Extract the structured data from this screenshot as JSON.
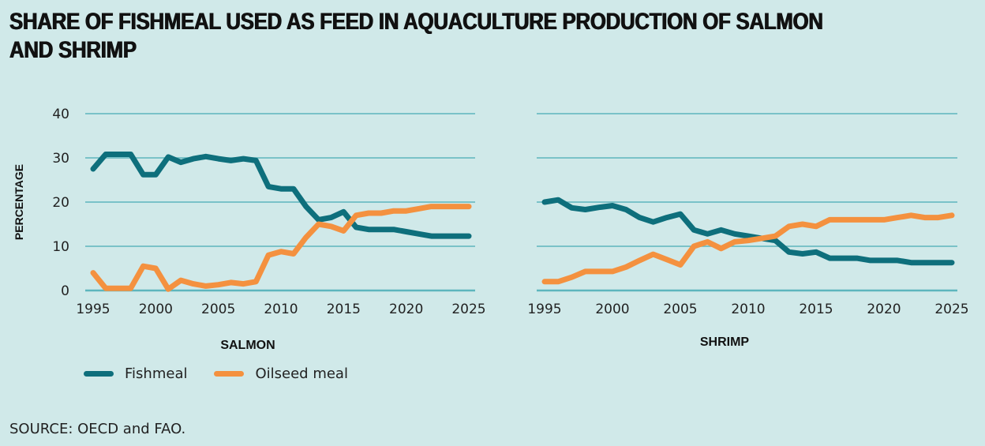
{
  "title": "SHARE OF FISHMEAL USED AS FEED IN AQUACULTURE PRODUCTION OF SALMON AND SHRIMP",
  "source": "SOURCE: OECD and FAO.",
  "colors": {
    "background": "#d0e9e9",
    "fishmeal": "#0e6f7c",
    "oilseed": "#f4913f",
    "grid": "#5db6bd"
  },
  "legend": [
    {
      "label": "Fishmeal",
      "color": "#0e6f7c"
    },
    {
      "label": "Oilseed meal",
      "color": "#f4913f"
    }
  ],
  "chart_data": [
    {
      "type": "line",
      "title": "SALMON",
      "xlabel": "",
      "ylabel": "PERCENTAGE",
      "ylim": [
        0,
        40
      ],
      "xlim": [
        1995,
        2025
      ],
      "yticks": [
        0,
        10,
        20,
        30,
        40
      ],
      "xticks": [
        1995,
        2000,
        2005,
        2010,
        2015,
        2020,
        2025
      ],
      "grid": true,
      "legend_position": "bottom-left",
      "x": [
        1995,
        1996,
        1997,
        1998,
        1999,
        2000,
        2001,
        2002,
        2003,
        2004,
        2005,
        2006,
        2007,
        2008,
        2009,
        2010,
        2011,
        2012,
        2013,
        2014,
        2015,
        2016,
        2017,
        2018,
        2019,
        2020,
        2021,
        2022,
        2023,
        2024,
        2025
      ],
      "series": [
        {
          "name": "Fishmeal",
          "values": [
            27.5,
            30.8,
            30.8,
            30.8,
            26.2,
            26.2,
            30.2,
            29.0,
            29.8,
            30.3,
            29.8,
            29.4,
            29.8,
            29.4,
            23.5,
            23.0,
            23.0,
            19.0,
            16.0,
            16.5,
            17.8,
            14.3,
            13.8,
            13.8,
            13.8,
            13.3,
            12.8,
            12.3,
            12.3,
            12.3,
            12.3
          ]
        },
        {
          "name": "Oilseed meal",
          "values": [
            4.0,
            0.5,
            0.5,
            0.5,
            5.5,
            5.0,
            0.3,
            2.3,
            1.5,
            1.0,
            1.3,
            1.8,
            1.5,
            2.0,
            8.0,
            8.8,
            8.3,
            12.0,
            15.0,
            14.5,
            13.5,
            17.0,
            17.5,
            17.5,
            18.0,
            18.0,
            18.5,
            19.0,
            19.0,
            19.0,
            19.0
          ]
        }
      ]
    },
    {
      "type": "line",
      "title": "SHRIMP",
      "xlabel": "",
      "ylabel": "",
      "ylim": [
        0,
        40
      ],
      "xlim": [
        1995,
        2025
      ],
      "yticks": [
        0,
        10,
        20,
        30,
        40
      ],
      "xticks": [
        1995,
        2000,
        2005,
        2010,
        2015,
        2020,
        2025
      ],
      "grid": true,
      "x": [
        1995,
        1996,
        1997,
        1998,
        1999,
        2000,
        2001,
        2002,
        2003,
        2004,
        2005,
        2006,
        2007,
        2008,
        2009,
        2010,
        2011,
        2012,
        2013,
        2014,
        2015,
        2016,
        2017,
        2018,
        2019,
        2020,
        2021,
        2022,
        2023,
        2024,
        2025
      ],
      "series": [
        {
          "name": "Fishmeal",
          "values": [
            20.0,
            20.5,
            18.7,
            18.3,
            18.8,
            19.2,
            18.3,
            16.5,
            15.5,
            16.5,
            17.3,
            13.7,
            12.8,
            13.7,
            12.8,
            12.3,
            11.8,
            11.3,
            8.7,
            8.3,
            8.7,
            7.3,
            7.3,
            7.3,
            6.8,
            6.8,
            6.8,
            6.3,
            6.3,
            6.3,
            6.3
          ]
        },
        {
          "name": "Oilseed meal",
          "values": [
            2.0,
            2.0,
            3.0,
            4.3,
            4.3,
            4.3,
            5.3,
            6.8,
            8.2,
            7.0,
            5.8,
            10.0,
            11.0,
            9.5,
            11.0,
            11.3,
            11.8,
            12.3,
            14.5,
            15.0,
            14.5,
            16.0,
            16.0,
            16.0,
            16.0,
            16.0,
            16.5,
            17.0,
            16.5,
            16.5,
            17.0
          ]
        }
      ]
    }
  ]
}
